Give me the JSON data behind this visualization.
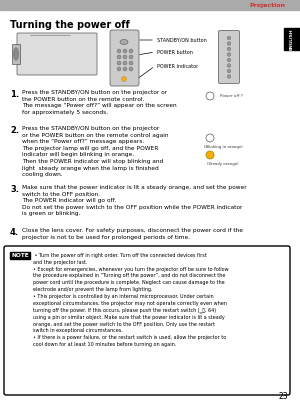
{
  "page_num": "23",
  "top_bar_color": "#aaaaaa",
  "top_bar_label": "Projection",
  "top_bar_label_color": "#cc3333",
  "english_tab_color": "#000000",
  "english_label": "ENGLISH",
  "section_title": "Turning the power off",
  "step1_num": "1.",
  "step1_text": "Press the STANDBY/ON button on the projector or\nthe POWER button on the remote control.\nThe message “Power off?” will appear on the screen\nfor approximately 5 seconds.",
  "step2_num": "2.",
  "step2_text": "Press the STANDBY/ON button on the projector\nor the POWER button on the remote control again\nwhen the “Power off?” message appears.\nThe projector lamp will go off, and the POWER\nindicator will begin blinking in orange.\nThen the POWER indicator will stop blinking and\nlight  steady orange when the lamp is finished\ncooling down.",
  "step3_num": "3.",
  "step3_text": "Make sure that the power indicator is lit a steady orange, and set the power\nswitch to the OFF position.\nThe POWER indicator will go off.\nDo not set the power switch to the OFF position while the POWER indicator\nis green or blinking.",
  "step4_num": "4.",
  "step4_text": "Close the lens cover. For safety purposes, disconnect the power cord if the\nprojector is not to be used for prolonged periods of time.",
  "note_label": "NOTE",
  "note_text": " • Turn the power off in right order. Turn off the connected devices first\nand the projector last.\n• Except for emergencies, whenever you turn the projector off be sure to follow\nthe procedure explained in “Turning off the power”, and do not disconnect the\npower cord until the procedure is complete. Neglect can cause damage to the\nelectrode and/or prevent the lamp from lighting.\n• This projector is controlled by an internal microprocessor. Under certain\nexceptional circumstances, the projector may not operate correctly even when\nturning off the power. If this occurs, please push the restart switch (‗７, 64)\nusing a pin or similar object. Make sure that the power indicator is lit a steady\norange, and set the power switch to the OFF position. Only use the restart\nswitch in exceptional circumstances.\n• If there is a power failure, or the restart switch is used, allow the projector to\ncool down for at least 10 minutes before turning on again.",
  "note_border_color": "#000000",
  "note_bg_color": "#ffffff",
  "bg_color": "#ffffff",
  "text_color": "#000000",
  "diagram_label_standby": "STANDBY/ON button",
  "diagram_label_power": "POWER button",
  "diagram_label_indicator": "POWER indicator"
}
